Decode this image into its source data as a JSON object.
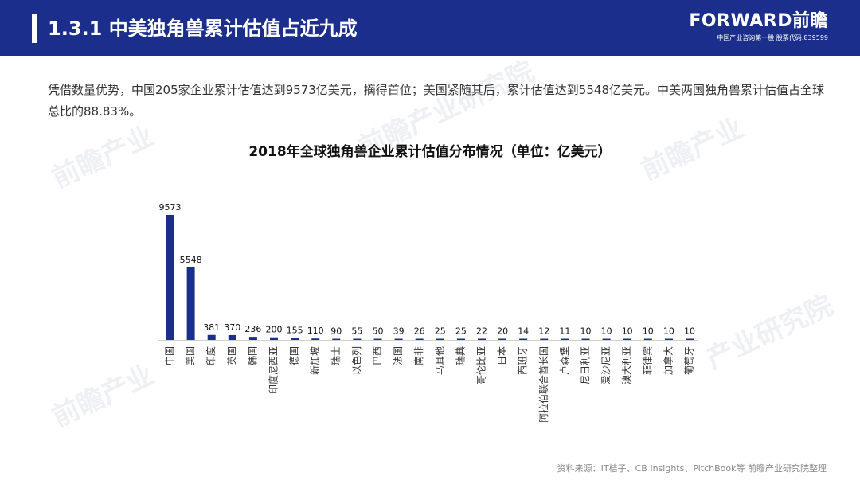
{
  "header": {
    "title": "1.3.1 中美独角兽累计估值占近九成",
    "brand_logo": "FORWARD前瞻",
    "brand_tagline": "中国产业咨询第一股 股票代码:839599"
  },
  "paragraph": "凭借数量优势，中国205家企业累计估值达到9573亿美元，摘得首位；美国紧随其后，累计估值达到5548亿美元。中美两国独角兽累计估值占全球总比的88.83%。",
  "chart_title": "2018年全球独角兽企业累计估值分布情况（单位：亿美元）",
  "footer": "资料来源：IT桔子、CB Insights、PitchBook等 前瞻产业研究院整理",
  "colors": {
    "header_bg": "#1b2e8c",
    "bar": "#1b2e8c"
  },
  "chart_data": {
    "type": "bar",
    "categories": [
      "中国",
      "美国",
      "印度",
      "英国",
      "韩国",
      "印度尼西亚",
      "德国",
      "新加坡",
      "瑞士",
      "以色列",
      "巴西",
      "法国",
      "南非",
      "马耳他",
      "瑞典",
      "哥伦比亚",
      "日本",
      "西班牙",
      "阿拉伯联合酋长国",
      "卢森堡",
      "尼日利亚",
      "爱沙尼亚",
      "澳大利亚",
      "菲律宾",
      "加拿大",
      "葡萄牙"
    ],
    "values": [
      9573,
      5548,
      381,
      370,
      236,
      200,
      155,
      110,
      90,
      55,
      50,
      39,
      26,
      25,
      25,
      22,
      20,
      14,
      12,
      11,
      10,
      10,
      10,
      10,
      10,
      10
    ],
    "title": "2018年全球独角兽企业累计估值分布情况（单位：亿美元）",
    "xlabel": "",
    "ylabel": "",
    "ylim": [
      0,
      9573
    ],
    "grid": false,
    "data_labels": true
  }
}
